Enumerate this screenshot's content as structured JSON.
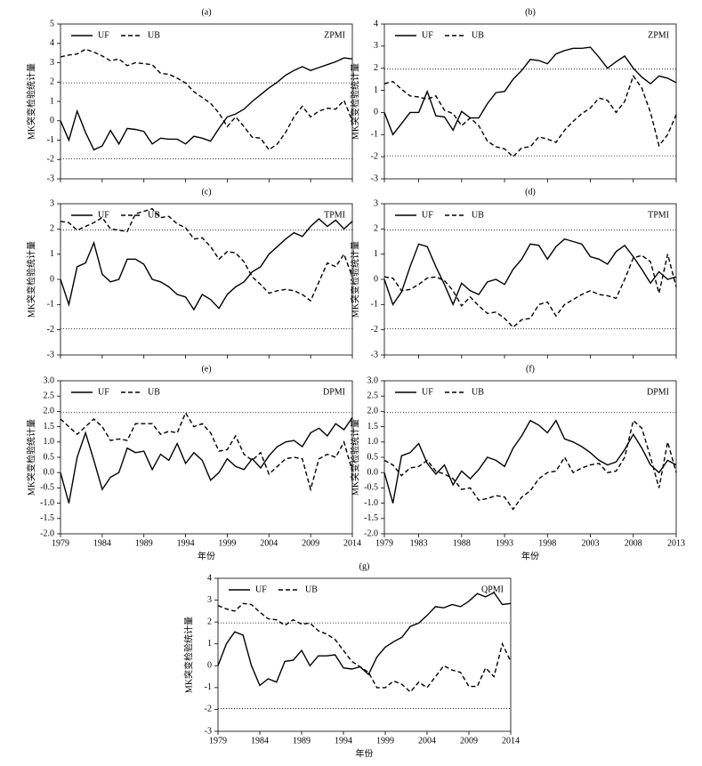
{
  "chart_data": [
    {
      "type": "line",
      "label": "(a)",
      "annotation": "ZPMI",
      "y_label": "MK突变检验统计量",
      "xlim": [
        1979,
        2014
      ],
      "ylim": [
        -3,
        5
      ],
      "xticks": [
        1979,
        1984,
        1989,
        1994,
        1999,
        2004,
        2009,
        2014
      ],
      "xtick_labels": false,
      "yticks": [
        -3,
        -2,
        -1,
        0,
        1,
        2,
        3,
        4,
        5
      ],
      "reference_lines": [
        1.96,
        -1.96
      ],
      "x": [
        1979,
        1980,
        1981,
        1982,
        1983,
        1984,
        1985,
        1986,
        1987,
        1988,
        1989,
        1990,
        1991,
        1992,
        1993,
        1994,
        1995,
        1996,
        1997,
        1998,
        1999,
        2000,
        2001,
        2002,
        2003,
        2004,
        2005,
        2006,
        2007,
        2008,
        2009,
        2010,
        2011,
        2012,
        2013,
        2014
      ],
      "series": [
        {
          "name": "UF",
          "color": "#000000",
          "dash": "solid",
          "values": [
            0,
            -1.0,
            0.5,
            -0.6,
            -1.5,
            -1.3,
            -0.5,
            -1.2,
            -0.4,
            -0.45,
            -0.55,
            -1.2,
            -0.9,
            -0.95,
            -0.95,
            -1.2,
            -0.8,
            -0.9,
            -1.05,
            -0.4,
            0.2,
            0.35,
            0.6,
            1.0,
            1.35,
            1.7,
            2.0,
            2.35,
            2.6,
            2.8,
            2.6,
            2.75,
            2.9,
            3.05,
            3.25,
            3.2
          ]
        },
        {
          "name": "UB",
          "color": "#000000",
          "dash": "dashed",
          "values": [
            3.3,
            3.4,
            3.45,
            3.7,
            3.55,
            3.35,
            3.1,
            3.2,
            2.85,
            3.0,
            2.95,
            2.9,
            2.45,
            2.4,
            2.2,
            1.95,
            1.5,
            1.2,
            0.9,
            0.4,
            -0.3,
            0.2,
            -0.3,
            -0.85,
            -0.9,
            -1.5,
            -1.2,
            -0.6,
            0.2,
            0.75,
            0.2,
            0.5,
            0.65,
            0.6,
            1.05,
            0.0
          ]
        }
      ]
    },
    {
      "type": "line",
      "label": "(b)",
      "annotation": "ZPMI",
      "y_label": "MK突变检验统计量",
      "xlim": [
        1979,
        2013
      ],
      "ylim": [
        -3,
        4
      ],
      "xticks": [
        1979,
        1983,
        1988,
        1993,
        1998,
        2003,
        2008,
        2013
      ],
      "xtick_labels": false,
      "yticks": [
        -3,
        -2,
        -1,
        0,
        1,
        2,
        3,
        4
      ],
      "reference_lines": [
        1.96,
        -1.96
      ],
      "x": [
        1979,
        1980,
        1981,
        1982,
        1983,
        1984,
        1985,
        1986,
        1987,
        1988,
        1989,
        1990,
        1991,
        1992,
        1993,
        1994,
        1995,
        1996,
        1997,
        1998,
        1999,
        2000,
        2001,
        2002,
        2003,
        2004,
        2005,
        2006,
        2007,
        2008,
        2009,
        2010,
        2011,
        2012,
        2013
      ],
      "series": [
        {
          "name": "UF",
          "color": "#000000",
          "dash": "solid",
          "values": [
            0,
            -1.0,
            -0.5,
            0,
            0,
            0.95,
            -0.15,
            -0.2,
            -0.8,
            0.05,
            -0.25,
            -0.25,
            0.4,
            0.9,
            0.95,
            1.5,
            1.9,
            2.4,
            2.35,
            2.2,
            2.65,
            2.8,
            2.9,
            2.9,
            2.95,
            2.5,
            2.0,
            2.3,
            2.55,
            2.0,
            1.6,
            1.3,
            1.65,
            1.55,
            1.35
          ]
        },
        {
          "name": "UB",
          "color": "#000000",
          "dash": "dashed",
          "values": [
            1.3,
            1.4,
            1.05,
            0.75,
            0.7,
            0.6,
            0.75,
            0.1,
            -0.05,
            -0.6,
            -0.25,
            -0.6,
            -1.3,
            -1.55,
            -1.65,
            -2.0,
            -1.6,
            -1.55,
            -1.1,
            -1.2,
            -1.35,
            -0.8,
            -0.4,
            -0.05,
            0.2,
            0.65,
            0.55,
            0.0,
            0.5,
            1.65,
            1.1,
            0.0,
            -1.5,
            -1.0,
            -0.1
          ]
        }
      ]
    },
    {
      "type": "line",
      "label": "(c)",
      "annotation": "TPMI",
      "y_label": "MK突变检验统计量",
      "xlim": [
        1979,
        2014
      ],
      "ylim": [
        -3,
        3
      ],
      "xticks": [
        1979,
        1984,
        1989,
        1994,
        1999,
        2004,
        2009,
        2014
      ],
      "xtick_labels": false,
      "yticks": [
        -3,
        -2,
        -1,
        0,
        1,
        2,
        3
      ],
      "reference_lines": [
        1.96,
        -1.96
      ],
      "x": [
        1979,
        1980,
        1981,
        1982,
        1983,
        1984,
        1985,
        1986,
        1987,
        1988,
        1989,
        1990,
        1991,
        1992,
        1993,
        1994,
        1995,
        1996,
        1997,
        1998,
        1999,
        2000,
        2001,
        2002,
        2003,
        2004,
        2005,
        2006,
        2007,
        2008,
        2009,
        2010,
        2011,
        2012,
        2013,
        2014
      ],
      "series": [
        {
          "name": "UF",
          "color": "#000000",
          "dash": "solid",
          "values": [
            0,
            -1.0,
            0.5,
            0.65,
            1.45,
            0.2,
            -0.1,
            0.0,
            0.8,
            0.8,
            0.6,
            0.0,
            -0.1,
            -0.3,
            -0.6,
            -0.7,
            -1.2,
            -0.6,
            -0.8,
            -1.15,
            -0.6,
            -0.3,
            -0.1,
            0.3,
            0.5,
            1.0,
            1.3,
            1.6,
            1.85,
            1.7,
            2.1,
            2.4,
            2.1,
            2.35,
            2.0,
            2.3
          ]
        },
        {
          "name": "UB",
          "color": "#000000",
          "dash": "dashed",
          "values": [
            2.3,
            2.25,
            1.95,
            2.1,
            2.25,
            2.45,
            2.0,
            1.95,
            1.9,
            2.6,
            2.7,
            2.8,
            2.45,
            2.5,
            2.2,
            2.05,
            1.6,
            1.65,
            1.3,
            0.8,
            1.1,
            1.05,
            0.7,
            0.1,
            -0.2,
            -0.55,
            -0.45,
            -0.4,
            -0.45,
            -0.6,
            -0.85,
            -0.1,
            0.65,
            0.5,
            1.0,
            0.1
          ]
        }
      ]
    },
    {
      "type": "line",
      "label": "(d)",
      "annotation": "TPMI",
      "y_label": "MK突变检验统计量",
      "xlim": [
        1979,
        2013
      ],
      "ylim": [
        -3,
        3
      ],
      "xticks": [
        1979,
        1983,
        1988,
        1993,
        1998,
        2003,
        2008,
        2013
      ],
      "xtick_labels": false,
      "yticks": [
        -3,
        -2,
        -1,
        0,
        1,
        2,
        3
      ],
      "reference_lines": [
        1.96,
        -1.96
      ],
      "x": [
        1979,
        1980,
        1981,
        1982,
        1983,
        1984,
        1985,
        1986,
        1987,
        1988,
        1989,
        1990,
        1991,
        1992,
        1993,
        1994,
        1995,
        1996,
        1997,
        1998,
        1999,
        2000,
        2001,
        2002,
        2003,
        2004,
        2005,
        2006,
        2007,
        2008,
        2009,
        2010,
        2011,
        2012,
        2013
      ],
      "series": [
        {
          "name": "UF",
          "color": "#000000",
          "dash": "solid",
          "values": [
            0,
            -1.0,
            -0.5,
            0.5,
            1.4,
            1.3,
            0.5,
            -0.2,
            -1.0,
            -0.15,
            -0.45,
            -0.6,
            -0.1,
            0.0,
            -0.2,
            0.4,
            0.8,
            1.4,
            1.35,
            0.8,
            1.3,
            1.6,
            1.5,
            1.4,
            0.9,
            0.8,
            0.6,
            1.1,
            1.35,
            0.9,
            0.4,
            -0.15,
            0.3,
            0.0,
            0.1
          ]
        },
        {
          "name": "UB",
          "color": "#000000",
          "dash": "dashed",
          "values": [
            0.1,
            0.05,
            -0.45,
            -0.4,
            -0.2,
            0.05,
            0.1,
            -0.05,
            -0.45,
            -1.05,
            -0.7,
            -1.05,
            -1.35,
            -1.3,
            -1.55,
            -1.9,
            -1.6,
            -1.55,
            -1.0,
            -0.9,
            -1.45,
            -1.0,
            -0.8,
            -0.6,
            -0.45,
            -0.6,
            -0.65,
            -0.75,
            0.0,
            0.85,
            0.95,
            0.7,
            -0.55,
            1.0,
            -0.3
          ]
        }
      ]
    },
    {
      "type": "line",
      "label": "(e)",
      "annotation": "DPMI",
      "y_label": "MK突变检验统计量",
      "x_label": "年份",
      "xlim": [
        1979,
        2014
      ],
      "ylim": [
        -2,
        3
      ],
      "xticks": [
        1979,
        1984,
        1989,
        1994,
        1999,
        2004,
        2009,
        2014
      ],
      "xtick_labels": true,
      "yticks": [
        {
          "value": -2,
          "label": "-2.0"
        },
        {
          "value": -1.5,
          "label": "-1.5"
        },
        {
          "value": -1,
          "label": "-1.0"
        },
        {
          "value": -0.5,
          "label": "-0.5"
        },
        {
          "value": 0,
          "label": "0.0"
        },
        {
          "value": 0.5,
          "label": "0.5"
        },
        {
          "value": 1,
          "label": "1.0"
        },
        {
          "value": 1.5,
          "label": "1.5"
        },
        {
          "value": 2,
          "label": "2.0"
        },
        {
          "value": 2.5,
          "label": "2.5"
        },
        {
          "value": 3,
          "label": "3.0"
        }
      ],
      "reference_lines": [
        1.96
      ],
      "x": [
        1979,
        1980,
        1981,
        1982,
        1983,
        1984,
        1985,
        1986,
        1987,
        1988,
        1989,
        1990,
        1991,
        1992,
        1993,
        1994,
        1995,
        1996,
        1997,
        1998,
        1999,
        2000,
        2001,
        2002,
        2003,
        2004,
        2005,
        2006,
        2007,
        2008,
        2009,
        2010,
        2011,
        2012,
        2013,
        2014
      ],
      "series": [
        {
          "name": "UF",
          "color": "#000000",
          "dash": "solid",
          "values": [
            0,
            -1.0,
            0.5,
            1.3,
            0.4,
            -0.55,
            -0.15,
            0.0,
            0.8,
            0.65,
            0.7,
            0.1,
            0.6,
            0.4,
            0.95,
            0.3,
            0.65,
            0.4,
            -0.25,
            0.0,
            0.45,
            0.2,
            0.1,
            0.45,
            0.15,
            0.55,
            0.85,
            1.0,
            1.05,
            0.85,
            1.3,
            1.45,
            1.2,
            1.6,
            1.4,
            1.8
          ]
        },
        {
          "name": "UB",
          "color": "#000000",
          "dash": "dashed",
          "values": [
            1.75,
            1.5,
            1.25,
            1.5,
            1.75,
            1.5,
            1.05,
            1.1,
            1.05,
            1.6,
            1.6,
            1.6,
            1.25,
            1.35,
            1.3,
            1.95,
            1.5,
            1.6,
            1.3,
            0.7,
            0.75,
            1.2,
            0.6,
            0.4,
            0.65,
            -0.05,
            0.2,
            0.45,
            0.5,
            0.45,
            -0.55,
            0.45,
            0.6,
            0.5,
            1.0,
            0.05
          ]
        }
      ]
    },
    {
      "type": "line",
      "label": "(f)",
      "annotation": "DPMI",
      "y_label": "MK突变检验统计量",
      "x_label": "年份",
      "xlim": [
        1979,
        2013
      ],
      "ylim": [
        -2,
        3
      ],
      "xticks": [
        1979,
        1983,
        1988,
        1993,
        1998,
        2003,
        2008,
        2013
      ],
      "xtick_labels": true,
      "yticks": [
        {
          "value": -2,
          "label": "-2.0"
        },
        {
          "value": -1.5,
          "label": "-1.5"
        },
        {
          "value": -1,
          "label": "-1.0"
        },
        {
          "value": -0.5,
          "label": "-0.5"
        },
        {
          "value": 0,
          "label": "0.0"
        },
        {
          "value": 0.5,
          "label": "0.5"
        },
        {
          "value": 1,
          "label": "1.0"
        },
        {
          "value": 1.5,
          "label": "1.5"
        },
        {
          "value": 2,
          "label": "2.0"
        },
        {
          "value": 2.5,
          "label": "2.5"
        },
        {
          "value": 3,
          "label": "3.0"
        }
      ],
      "reference_lines": [
        1.96
      ],
      "x": [
        1979,
        1980,
        1981,
        1982,
        1983,
        1984,
        1985,
        1986,
        1987,
        1988,
        1989,
        1990,
        1991,
        1992,
        1993,
        1994,
        1995,
        1996,
        1997,
        1998,
        1999,
        2000,
        2001,
        2002,
        2003,
        2004,
        2005,
        2006,
        2007,
        2008,
        2009,
        2010,
        2011,
        2012,
        2013
      ],
      "series": [
        {
          "name": "UF",
          "color": "#000000",
          "dash": "solid",
          "values": [
            0,
            -1.0,
            0.55,
            0.65,
            0.95,
            0.3,
            -0.05,
            0.25,
            -0.4,
            0.05,
            -0.2,
            0.1,
            0.5,
            0.4,
            0.2,
            0.8,
            1.2,
            1.7,
            1.55,
            1.3,
            1.7,
            1.1,
            1.0,
            0.85,
            0.65,
            0.4,
            0.25,
            0.35,
            0.75,
            1.25,
            0.8,
            0.25,
            0.0,
            0.4,
            0.25
          ]
        },
        {
          "name": "UB",
          "color": "#000000",
          "dash": "dashed",
          "values": [
            0.4,
            0.25,
            -0.1,
            0.15,
            0.2,
            0.4,
            0.05,
            -0.05,
            -0.2,
            -0.55,
            -0.5,
            -0.9,
            -0.85,
            -0.75,
            -0.8,
            -1.2,
            -0.8,
            -0.6,
            -0.2,
            0.0,
            0.05,
            0.5,
            0.0,
            0.15,
            0.25,
            0.3,
            0.0,
            0.05,
            0.5,
            1.7,
            1.45,
            0.5,
            -0.5,
            1.0,
            0.0
          ]
        }
      ]
    },
    {
      "type": "line",
      "label": "(g)",
      "annotation": "QPMI",
      "y_label": "MK突变检验统计量",
      "x_label": "年份",
      "xlim": [
        1979,
        2014
      ],
      "ylim": [
        -3,
        4
      ],
      "xticks": [
        1979,
        1984,
        1989,
        1994,
        1999,
        2004,
        2009,
        2014
      ],
      "xtick_labels": true,
      "yticks": [
        -3,
        -2,
        -1,
        0,
        1,
        2,
        3,
        4
      ],
      "reference_lines": [
        1.96,
        -1.96
      ],
      "x": [
        1979,
        1980,
        1981,
        1982,
        1983,
        1984,
        1985,
        1986,
        1987,
        1988,
        1989,
        1990,
        1991,
        1992,
        1993,
        1994,
        1995,
        1996,
        1997,
        1998,
        1999,
        2000,
        2001,
        2002,
        2003,
        2004,
        2005,
        2006,
        2007,
        2008,
        2009,
        2010,
        2011,
        2012,
        2013,
        2014
      ],
      "series": [
        {
          "name": "UF",
          "color": "#000000",
          "dash": "solid",
          "values": [
            0,
            1.0,
            1.55,
            1.4,
            0.0,
            -0.9,
            -0.6,
            -0.75,
            0.2,
            0.25,
            0.7,
            0.0,
            0.45,
            0.45,
            0.5,
            -0.1,
            -0.15,
            -0.05,
            -0.4,
            0.4,
            0.85,
            1.1,
            1.3,
            1.8,
            1.95,
            2.3,
            2.7,
            2.65,
            2.8,
            2.7,
            2.95,
            3.3,
            3.15,
            3.35,
            2.8,
            2.85
          ]
        },
        {
          "name": "UB",
          "color": "#000000",
          "dash": "dashed",
          "values": [
            2.75,
            2.6,
            2.5,
            2.85,
            2.8,
            2.45,
            2.15,
            2.1,
            1.85,
            2.1,
            1.9,
            1.95,
            1.6,
            1.45,
            1.2,
            0.7,
            0.2,
            -0.05,
            -0.3,
            -1.0,
            -1.0,
            -0.7,
            -0.85,
            -1.2,
            -0.75,
            -1.0,
            -0.5,
            0.0,
            -0.2,
            -0.3,
            -0.95,
            -0.95,
            -0.1,
            -0.5,
            1.0,
            0.2
          ]
        }
      ]
    }
  ]
}
